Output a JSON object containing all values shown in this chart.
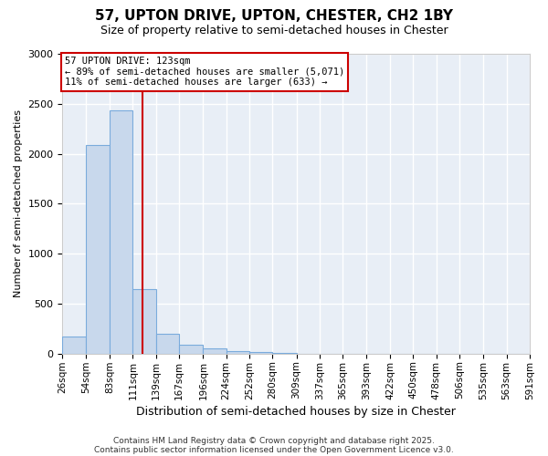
{
  "title_line1": "57, UPTON DRIVE, UPTON, CHESTER, CH2 1BY",
  "title_line2": "Size of property relative to semi-detached houses in Chester",
  "xlabel": "Distribution of semi-detached houses by size in Chester",
  "ylabel": "Number of semi-detached properties",
  "bar_color": "#c8d8ec",
  "bar_edge_color": "#7aabdc",
  "background_color": "#e8eef6",
  "fig_background_color": "#ffffff",
  "grid_color": "#ffffff",
  "annotation_box_color": "#cc0000",
  "vline_color": "#cc0000",
  "annotation_title": "57 UPTON DRIVE: 123sqm",
  "annotation_line2": "← 89% of semi-detached houses are smaller (5,071)",
  "annotation_line3": "11% of semi-detached houses are larger (633) →",
  "property_size": 123,
  "footnote1": "Contains HM Land Registry data © Crown copyright and database right 2025.",
  "footnote2": "Contains public sector information licensed under the Open Government Licence v3.0.",
  "bins": [
    26,
    54,
    83,
    111,
    139,
    167,
    196,
    224,
    252,
    280,
    309,
    337,
    365,
    393,
    422,
    450,
    478,
    506,
    535,
    563,
    591
  ],
  "counts": [
    175,
    2090,
    2430,
    650,
    200,
    85,
    50,
    30,
    18,
    5,
    0,
    0,
    0,
    0,
    0,
    0,
    0,
    0,
    0,
    0
  ],
  "ylim": [
    0,
    3000
  ],
  "yticks": [
    0,
    500,
    1000,
    1500,
    2000,
    2500,
    3000
  ]
}
